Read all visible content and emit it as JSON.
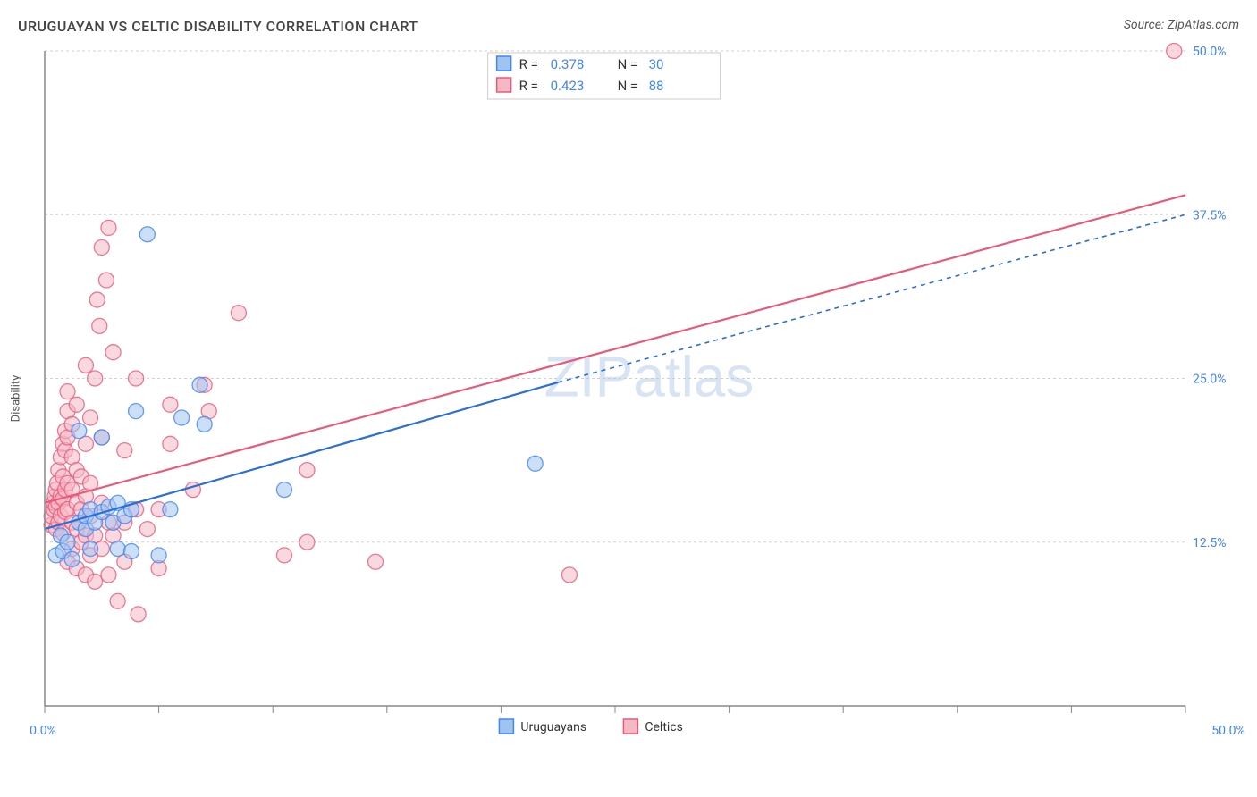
{
  "title": "URUGUAYAN VS CELTIC DISABILITY CORRELATION CHART",
  "source": "Source: ZipAtlas.com",
  "ylabel": "Disability",
  "watermark": {
    "part1": "ZIP",
    "part2": "atlas"
  },
  "chart": {
    "type": "scatter",
    "background_color": "#ffffff",
    "grid_color": "#d0d0d0",
    "axis_color": "#888888",
    "xlim": [
      0,
      50
    ],
    "ylim": [
      0,
      50
    ],
    "x_ticks": [
      0,
      5,
      10,
      15,
      20,
      25,
      30,
      35,
      40,
      45,
      50
    ],
    "y_gridlines": [
      12.5,
      25.0,
      37.5,
      50.0
    ],
    "y_tick_labels": [
      "12.5%",
      "25.0%",
      "37.5%",
      "50.0%"
    ],
    "x_corner_labels": [
      "0.0%",
      "50.0%"
    ],
    "series": [
      {
        "name": "Uruguayans",
        "color": "#a0c4f0",
        "stroke": "#4285f4",
        "line_color": "#2a6fd6",
        "line_dash": "5,5",
        "R": "0.378",
        "N": "30",
        "reg_start": [
          0,
          13.5
        ],
        "reg_end_drawn": [
          22.5,
          24.7
        ],
        "reg_end_ext": [
          50,
          37.5
        ],
        "points": [
          [
            0.5,
            11.5
          ],
          [
            0.8,
            11.8
          ],
          [
            0.7,
            13.0
          ],
          [
            1.0,
            12.5
          ],
          [
            1.2,
            11.2
          ],
          [
            1.5,
            14.0
          ],
          [
            1.8,
            13.5
          ],
          [
            1.5,
            21.0
          ],
          [
            1.8,
            14.5
          ],
          [
            2.0,
            12.0
          ],
          [
            2.0,
            15.0
          ],
          [
            2.2,
            14.0
          ],
          [
            2.5,
            14.8
          ],
          [
            2.5,
            20.5
          ],
          [
            2.8,
            15.2
          ],
          [
            3.0,
            14.0
          ],
          [
            3.2,
            15.5
          ],
          [
            3.2,
            12.0
          ],
          [
            3.5,
            14.5
          ],
          [
            3.8,
            15.0
          ],
          [
            4.0,
            22.5
          ],
          [
            4.5,
            36.0
          ],
          [
            5.0,
            11.5
          ],
          [
            5.5,
            15.0
          ],
          [
            6.0,
            22.0
          ],
          [
            6.8,
            24.5
          ],
          [
            7.0,
            21.5
          ],
          [
            10.5,
            16.5
          ],
          [
            21.5,
            18.5
          ],
          [
            3.8,
            11.8
          ]
        ]
      },
      {
        "name": "Celtics",
        "color": "#f5b8c5",
        "stroke": "#e85a7a",
        "line_color": "#e85a7a",
        "line_dash": "",
        "R": "0.423",
        "N": "88",
        "reg_start": [
          0,
          15.5
        ],
        "reg_end_drawn": [
          50,
          39.0
        ],
        "reg_end_ext": [
          50,
          39.0
        ],
        "points": [
          [
            0.3,
            13.8
          ],
          [
            0.3,
            14.5
          ],
          [
            0.4,
            15.0
          ],
          [
            0.4,
            15.5
          ],
          [
            0.45,
            16.0
          ],
          [
            0.5,
            13.5
          ],
          [
            0.5,
            15.2
          ],
          [
            0.5,
            16.5
          ],
          [
            0.55,
            17.0
          ],
          [
            0.6,
            14.0
          ],
          [
            0.6,
            15.5
          ],
          [
            0.6,
            18.0
          ],
          [
            0.7,
            14.5
          ],
          [
            0.7,
            16.0
          ],
          [
            0.7,
            19.0
          ],
          [
            0.8,
            13.2
          ],
          [
            0.8,
            15.8
          ],
          [
            0.8,
            17.5
          ],
          [
            0.8,
            20.0
          ],
          [
            0.9,
            14.8
          ],
          [
            0.9,
            16.5
          ],
          [
            0.9,
            19.5
          ],
          [
            0.9,
            21.0
          ],
          [
            1.0,
            11.0
          ],
          [
            1.0,
            15.0
          ],
          [
            1.0,
            17.0
          ],
          [
            1.0,
            20.5
          ],
          [
            1.0,
            22.5
          ],
          [
            1.0,
            24.0
          ],
          [
            1.2,
            12.0
          ],
          [
            1.2,
            14.0
          ],
          [
            1.2,
            16.5
          ],
          [
            1.2,
            19.0
          ],
          [
            1.2,
            21.5
          ],
          [
            1.4,
            10.5
          ],
          [
            1.4,
            13.5
          ],
          [
            1.4,
            15.5
          ],
          [
            1.4,
            18.0
          ],
          [
            1.4,
            23.0
          ],
          [
            1.6,
            12.5
          ],
          [
            1.6,
            15.0
          ],
          [
            1.6,
            17.5
          ],
          [
            1.8,
            10.0
          ],
          [
            1.8,
            13.0
          ],
          [
            1.8,
            16.0
          ],
          [
            1.8,
            20.0
          ],
          [
            1.8,
            26.0
          ],
          [
            2.0,
            11.5
          ],
          [
            2.0,
            14.5
          ],
          [
            2.0,
            17.0
          ],
          [
            2.0,
            22.0
          ],
          [
            2.2,
            9.5
          ],
          [
            2.2,
            13.0
          ],
          [
            2.2,
            25.0
          ],
          [
            2.3,
            31.0
          ],
          [
            2.4,
            29.0
          ],
          [
            2.5,
            12.0
          ],
          [
            2.5,
            15.5
          ],
          [
            2.5,
            20.5
          ],
          [
            2.5,
            35.0
          ],
          [
            2.7,
            32.5
          ],
          [
            2.8,
            10.0
          ],
          [
            2.8,
            14.0
          ],
          [
            2.8,
            36.5
          ],
          [
            3.0,
            13.0
          ],
          [
            3.0,
            27.0
          ],
          [
            3.2,
            8.0
          ],
          [
            3.5,
            11.0
          ],
          [
            3.5,
            14.0
          ],
          [
            3.5,
            19.5
          ],
          [
            4.0,
            15.0
          ],
          [
            4.0,
            25.0
          ],
          [
            4.1,
            7.0
          ],
          [
            4.5,
            13.5
          ],
          [
            5.0,
            10.5
          ],
          [
            5.0,
            15.0
          ],
          [
            5.5,
            20.0
          ],
          [
            5.5,
            23.0
          ],
          [
            6.5,
            16.5
          ],
          [
            7.0,
            24.5
          ],
          [
            7.2,
            22.5
          ],
          [
            8.5,
            30.0
          ],
          [
            10.5,
            11.5
          ],
          [
            11.5,
            12.5
          ],
          [
            11.5,
            18.0
          ],
          [
            14.5,
            11.0
          ],
          [
            23.0,
            10.0
          ],
          [
            49.5,
            50.0
          ]
        ]
      }
    ],
    "bottom_legend": [
      {
        "label": "Uruguayans",
        "fill": "#a0c4f0",
        "stroke": "#4285f4"
      },
      {
        "label": "Celtics",
        "fill": "#f5b8c5",
        "stroke": "#e85a7a"
      }
    ]
  }
}
